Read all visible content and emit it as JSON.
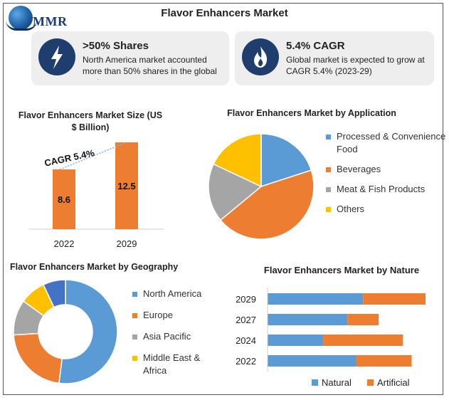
{
  "header": {
    "title": "Flavor Enhancers Market",
    "logo_text": "MMR"
  },
  "cards": [
    {
      "icon": "lightning-icon",
      "headline": ">50% Shares",
      "text": "North America market accounted more than 50% shares in the global market"
    },
    {
      "icon": "flame-icon",
      "headline": "5.4% CAGR",
      "text": "Global market is expected to grow at CAGR 5.4% (2023-29)"
    }
  ],
  "colors": {
    "blue": "#5b9bd5",
    "orange": "#ed7d31",
    "gray": "#a5a5a5",
    "yellow": "#ffc000",
    "navy": "#4472c4",
    "dark": "#1f3e6d"
  },
  "chart_data": [
    {
      "type": "bar",
      "title": "Flavor Enhancers Market Size (US $ Billion)",
      "categories": [
        "2022",
        "2029"
      ],
      "values": [
        8.6,
        12.5
      ],
      "annotation": "CAGR 5.4%",
      "ylim": [
        0,
        12.5
      ]
    },
    {
      "type": "pie",
      "title": "Flavor Enhancers Market by Application",
      "labels": [
        "Processed & Convenience Food",
        "Beverages",
        "Meat & Fish Products",
        "Others"
      ],
      "values": [
        20,
        44,
        18,
        18
      ],
      "colors": [
        "#5b9bd5",
        "#ed7d31",
        "#a5a5a5",
        "#ffc000"
      ]
    },
    {
      "type": "pie",
      "subtype": "donut",
      "title": "Flavor Enhancers Market by Geography",
      "labels": [
        "North America",
        "Europe",
        "Asia Pacific",
        "Middle East & Africa",
        ""
      ],
      "legend_labels": [
        "North America",
        "Europe",
        "Asia Pacific",
        "Middle East & Africa"
      ],
      "values": [
        52,
        22,
        11,
        8,
        7
      ],
      "colors": [
        "#5b9bd5",
        "#ed7d31",
        "#a5a5a5",
        "#ffc000",
        "#4472c4"
      ]
    },
    {
      "type": "bar",
      "subtype": "stacked-horizontal",
      "title": "Flavor Enhancers Market by Nature",
      "categories": [
        "2029",
        "2027",
        "2024",
        "2022"
      ],
      "series": [
        {
          "name": "Natural",
          "values": [
            11,
            9.2,
            6.4,
            10.2
          ]
        },
        {
          "name": "Artificial",
          "values": [
            7.2,
            3.6,
            9.2,
            6.4
          ]
        }
      ],
      "xlim": [
        0,
        20
      ]
    }
  ]
}
